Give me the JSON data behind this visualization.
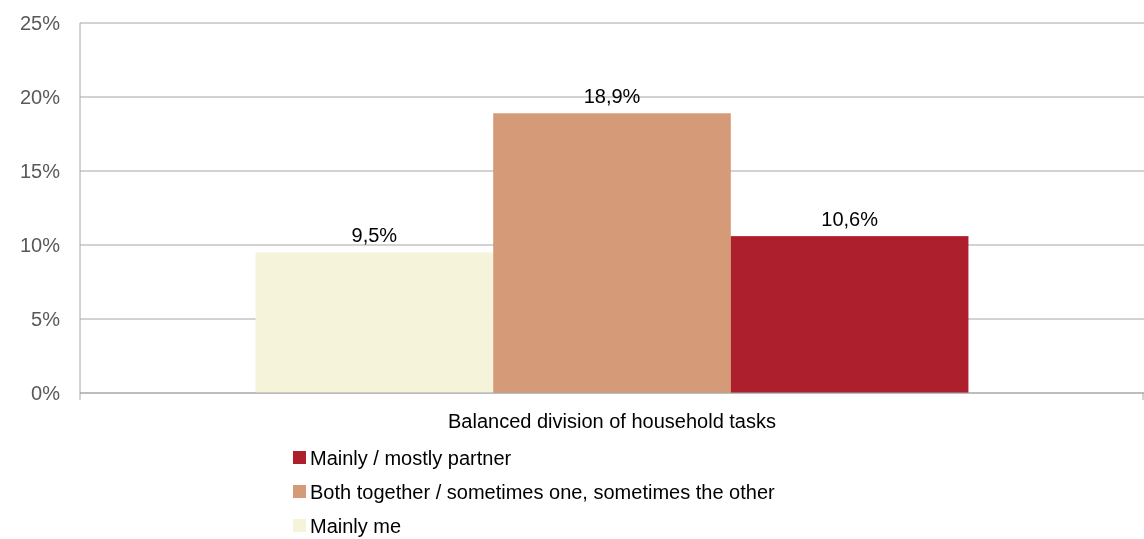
{
  "chart_data": {
    "type": "bar",
    "categories": [
      "Balanced division of household tasks"
    ],
    "series": [
      {
        "name": "Mainly me",
        "color": "#f5f3da",
        "values": [
          9.5
        ],
        "value_labels": [
          "9,5%"
        ]
      },
      {
        "name": "Both together / sometimes one, sometimes the other",
        "color": "#d59b78",
        "values": [
          18.9
        ],
        "value_labels": [
          "18,9%"
        ]
      },
      {
        "name": "Mainly / mostly partner",
        "color": "#ae1f2e",
        "values": [
          10.6
        ],
        "value_labels": [
          "10,6%"
        ]
      }
    ],
    "ylim": [
      0,
      25
    ],
    "yticks": [
      {
        "value": 0,
        "label": "0%"
      },
      {
        "value": 5,
        "label": "5%"
      },
      {
        "value": 10,
        "label": "10%"
      },
      {
        "value": 15,
        "label": "15%"
      },
      {
        "value": 20,
        "label": "20%"
      },
      {
        "value": 25,
        "label": "25%"
      }
    ],
    "grid": "y",
    "legend": "bottom"
  }
}
